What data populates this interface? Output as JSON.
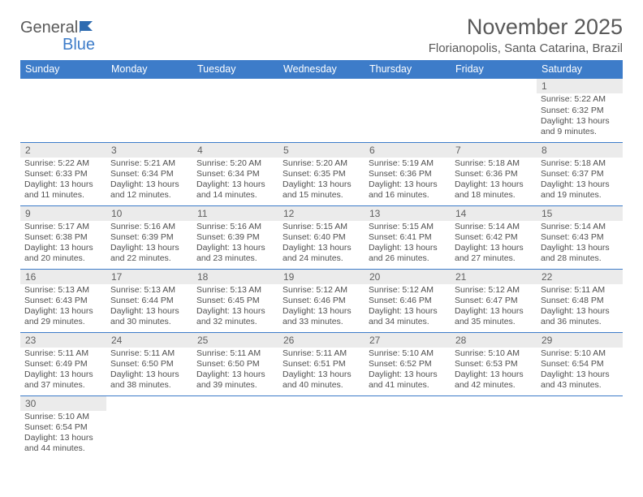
{
  "logo": {
    "text1": "General",
    "text2": "Blue"
  },
  "title": "November 2025",
  "location": "Florianopolis, Santa Catarina, Brazil",
  "colors": {
    "header_bg": "#3d7cc9",
    "daynum_bg": "#ebebeb",
    "row_border": "#3d7cc9"
  },
  "fonts": {
    "title_size": 27,
    "location_size": 15,
    "header_size": 12.5,
    "daynum_size": 12,
    "body_size": 10.5
  },
  "weekdays": [
    "Sunday",
    "Monday",
    "Tuesday",
    "Wednesday",
    "Thursday",
    "Friday",
    "Saturday"
  ],
  "first_weekday_index": 6,
  "days": [
    {
      "n": 1,
      "sunrise": "5:22 AM",
      "sunset": "6:32 PM",
      "dl_h": 13,
      "dl_m": 9
    },
    {
      "n": 2,
      "sunrise": "5:22 AM",
      "sunset": "6:33 PM",
      "dl_h": 13,
      "dl_m": 11
    },
    {
      "n": 3,
      "sunrise": "5:21 AM",
      "sunset": "6:34 PM",
      "dl_h": 13,
      "dl_m": 12
    },
    {
      "n": 4,
      "sunrise": "5:20 AM",
      "sunset": "6:34 PM",
      "dl_h": 13,
      "dl_m": 14
    },
    {
      "n": 5,
      "sunrise": "5:20 AM",
      "sunset": "6:35 PM",
      "dl_h": 13,
      "dl_m": 15
    },
    {
      "n": 6,
      "sunrise": "5:19 AM",
      "sunset": "6:36 PM",
      "dl_h": 13,
      "dl_m": 16
    },
    {
      "n": 7,
      "sunrise": "5:18 AM",
      "sunset": "6:36 PM",
      "dl_h": 13,
      "dl_m": 18
    },
    {
      "n": 8,
      "sunrise": "5:18 AM",
      "sunset": "6:37 PM",
      "dl_h": 13,
      "dl_m": 19
    },
    {
      "n": 9,
      "sunrise": "5:17 AM",
      "sunset": "6:38 PM",
      "dl_h": 13,
      "dl_m": 20
    },
    {
      "n": 10,
      "sunrise": "5:16 AM",
      "sunset": "6:39 PM",
      "dl_h": 13,
      "dl_m": 22
    },
    {
      "n": 11,
      "sunrise": "5:16 AM",
      "sunset": "6:39 PM",
      "dl_h": 13,
      "dl_m": 23
    },
    {
      "n": 12,
      "sunrise": "5:15 AM",
      "sunset": "6:40 PM",
      "dl_h": 13,
      "dl_m": 24
    },
    {
      "n": 13,
      "sunrise": "5:15 AM",
      "sunset": "6:41 PM",
      "dl_h": 13,
      "dl_m": 26
    },
    {
      "n": 14,
      "sunrise": "5:14 AM",
      "sunset": "6:42 PM",
      "dl_h": 13,
      "dl_m": 27
    },
    {
      "n": 15,
      "sunrise": "5:14 AM",
      "sunset": "6:43 PM",
      "dl_h": 13,
      "dl_m": 28
    },
    {
      "n": 16,
      "sunrise": "5:13 AM",
      "sunset": "6:43 PM",
      "dl_h": 13,
      "dl_m": 29
    },
    {
      "n": 17,
      "sunrise": "5:13 AM",
      "sunset": "6:44 PM",
      "dl_h": 13,
      "dl_m": 30
    },
    {
      "n": 18,
      "sunrise": "5:13 AM",
      "sunset": "6:45 PM",
      "dl_h": 13,
      "dl_m": 32
    },
    {
      "n": 19,
      "sunrise": "5:12 AM",
      "sunset": "6:46 PM",
      "dl_h": 13,
      "dl_m": 33
    },
    {
      "n": 20,
      "sunrise": "5:12 AM",
      "sunset": "6:46 PM",
      "dl_h": 13,
      "dl_m": 34
    },
    {
      "n": 21,
      "sunrise": "5:12 AM",
      "sunset": "6:47 PM",
      "dl_h": 13,
      "dl_m": 35
    },
    {
      "n": 22,
      "sunrise": "5:11 AM",
      "sunset": "6:48 PM",
      "dl_h": 13,
      "dl_m": 36
    },
    {
      "n": 23,
      "sunrise": "5:11 AM",
      "sunset": "6:49 PM",
      "dl_h": 13,
      "dl_m": 37
    },
    {
      "n": 24,
      "sunrise": "5:11 AM",
      "sunset": "6:50 PM",
      "dl_h": 13,
      "dl_m": 38
    },
    {
      "n": 25,
      "sunrise": "5:11 AM",
      "sunset": "6:50 PM",
      "dl_h": 13,
      "dl_m": 39
    },
    {
      "n": 26,
      "sunrise": "5:11 AM",
      "sunset": "6:51 PM",
      "dl_h": 13,
      "dl_m": 40
    },
    {
      "n": 27,
      "sunrise": "5:10 AM",
      "sunset": "6:52 PM",
      "dl_h": 13,
      "dl_m": 41
    },
    {
      "n": 28,
      "sunrise": "5:10 AM",
      "sunset": "6:53 PM",
      "dl_h": 13,
      "dl_m": 42
    },
    {
      "n": 29,
      "sunrise": "5:10 AM",
      "sunset": "6:54 PM",
      "dl_h": 13,
      "dl_m": 43
    },
    {
      "n": 30,
      "sunrise": "5:10 AM",
      "sunset": "6:54 PM",
      "dl_h": 13,
      "dl_m": 44
    }
  ],
  "labels": {
    "sunrise_prefix": "Sunrise: ",
    "sunset_prefix": "Sunset: ",
    "daylight_prefix": "Daylight: ",
    "hours_word": " hours",
    "and_word": "and ",
    "minutes_word": " minutes."
  }
}
